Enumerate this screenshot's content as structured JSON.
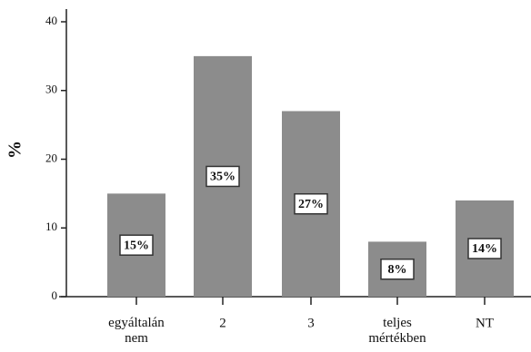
{
  "chart_data": {
    "type": "bar",
    "y_label": "%",
    "categories": [
      "egyáltalán nem",
      "2",
      "3",
      "teljes mértékben",
      "NT"
    ],
    "values": [
      15,
      35,
      27,
      8,
      14
    ],
    "value_labels": [
      "15%",
      "35%",
      "27%",
      "8%",
      "14%"
    ],
    "color": "#8c8c8c",
    "ylim": [
      0,
      40
    ],
    "yticks": [
      0,
      10,
      20,
      30,
      40
    ]
  }
}
